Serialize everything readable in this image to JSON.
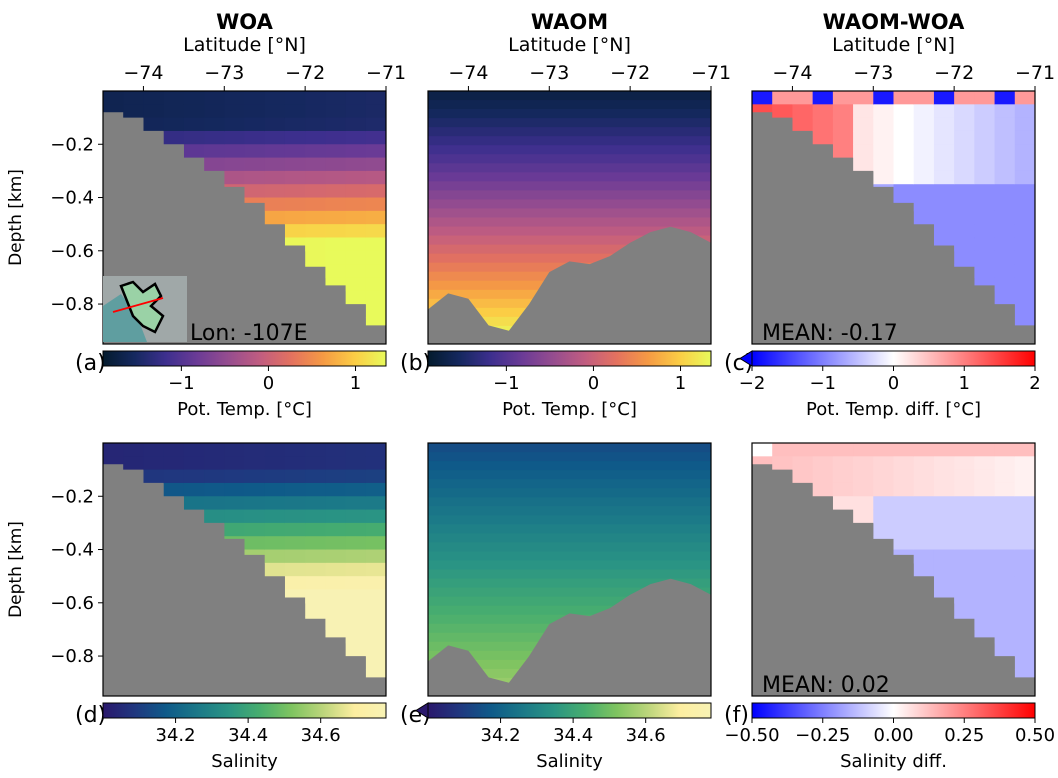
{
  "chart_data": [
    {
      "type": "heatmap",
      "panel": "(a)",
      "title": "WOA",
      "xlabel": "Latitude [°N]",
      "ylabel": "Depth [km]",
      "xticks": [
        -74,
        -73,
        -72,
        -71
      ],
      "xlim": [
        -74.5,
        -71
      ],
      "yticks": [
        -0.2,
        -0.4,
        -0.6,
        -0.8
      ],
      "ylim": [
        -0.95,
        0
      ],
      "annotation": "Lon: -107E",
      "inset_map": true,
      "colorbar": {
        "label": "Pot. Temp. [°C]",
        "ticks": [
          -1,
          0,
          1
        ],
        "range": [
          -1.9,
          1.35
        ],
        "cmap": "thermal"
      },
      "field": "Potential temperature",
      "surface_value": -1.6,
      "deep_value": 1.2
    },
    {
      "type": "heatmap",
      "panel": "(b)",
      "title": "WAOM",
      "xlabel": "Latitude [°N]",
      "xticks": [
        -74,
        -73,
        -72,
        -71
      ],
      "xlim": [
        -74.5,
        -71
      ],
      "ylim": [
        -0.95,
        0
      ],
      "colorbar": {
        "label": "Pot. Temp. [°C]",
        "ticks": [
          -1,
          0,
          1
        ],
        "range": [
          -1.9,
          1.35
        ],
        "cmap": "thermal"
      },
      "field": "Potential temperature",
      "bathymetry_depth_km": [
        -0.82,
        -0.76,
        -0.78,
        -0.88,
        -0.9,
        -0.8,
        -0.68,
        -0.64,
        -0.65,
        -0.62,
        -0.57,
        -0.53,
        -0.51,
        -0.53,
        -0.57
      ]
    },
    {
      "type": "heatmap",
      "panel": "(c)",
      "title": "WAOM-WOA",
      "xlabel": "Latitude [°N]",
      "xticks": [
        -74,
        -73,
        -72,
        -71
      ],
      "xlim": [
        -74.5,
        -71
      ],
      "ylim": [
        -0.95,
        0
      ],
      "annotation": "MEAN: -0.17",
      "mean": -0.17,
      "colorbar": {
        "label": "Pot. Temp. diff. [°C]",
        "ticks": [
          -2,
          -1,
          0,
          1,
          2
        ],
        "range": [
          -2,
          2
        ],
        "cmap": "bwr",
        "extend": "min"
      },
      "field": "Potential temperature difference"
    },
    {
      "type": "heatmap",
      "panel": "(d)",
      "ylabel": "Depth [km]",
      "yticks": [
        -0.2,
        -0.4,
        -0.6,
        -0.8
      ],
      "ylim": [
        -0.95,
        0
      ],
      "colorbar": {
        "label": "Salinity",
        "ticks": [
          34.2,
          34.4,
          34.6
        ],
        "range": [
          34.0,
          34.78
        ],
        "cmap": "haline"
      },
      "field": "Salinity",
      "surface_value": 34.05,
      "deep_value": 34.72
    },
    {
      "type": "heatmap",
      "panel": "(e)",
      "ylim": [
        -0.95,
        0
      ],
      "colorbar": {
        "label": "Salinity",
        "ticks": [
          34.2,
          34.4,
          34.6
        ],
        "range": [
          34.0,
          34.78
        ],
        "cmap": "haline",
        "extend": "min"
      },
      "field": "Salinity"
    },
    {
      "type": "heatmap",
      "panel": "(f)",
      "ylim": [
        -0.95,
        0
      ],
      "annotation": "MEAN: 0.02",
      "mean": 0.02,
      "colorbar": {
        "label": "Salinity diff.",
        "ticks": [
          "−0.50",
          "−0.25",
          "0.00",
          "0.25",
          "0.50"
        ],
        "range": [
          -0.5,
          0.5
        ],
        "cmap": "bwr"
      },
      "field": "Salinity difference"
    }
  ],
  "colors": {
    "land": "#808080",
    "thermal": [
      "#041b2d",
      "#15285f",
      "#3d2f8e",
      "#6b3b96",
      "#964d8f",
      "#c15d80",
      "#e4725f",
      "#f59a44",
      "#fbcd45",
      "#e8fa5b"
    ],
    "haline": [
      "#2a186c",
      "#20377f",
      "#0f5a89",
      "#1b7888",
      "#2a9484",
      "#48ae6e",
      "#7fc460",
      "#bcd57b",
      "#fdeea0",
      "#f8f2b4"
    ],
    "bwr": [
      "#0000ff",
      "#ffffff",
      "#ff0000"
    ]
  },
  "top_axis_label": "Latitude [°N]"
}
